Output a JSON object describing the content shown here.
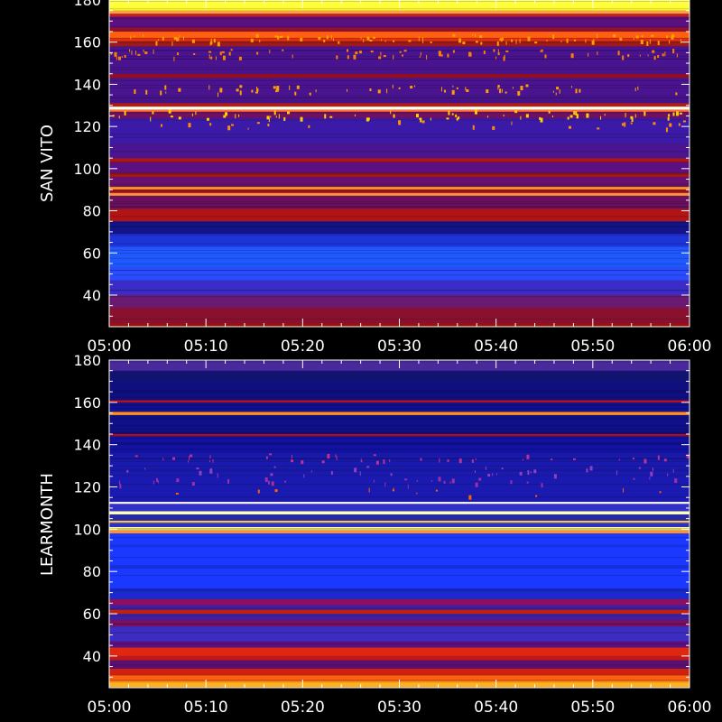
{
  "chart_data": [
    {
      "type": "heatmap",
      "ylabel": "SAN VITO",
      "x_ticks": [
        "05:00",
        "05:10",
        "05:20",
        "05:30",
        "05:40",
        "05:50",
        "06:00"
      ],
      "y_ticks": [
        40,
        60,
        80,
        100,
        120,
        140,
        160,
        180
      ],
      "xlim": [
        "05:00",
        "06:00"
      ],
      "ylim": [
        25,
        180
      ],
      "colormap": [
        "#000030",
        "#1010c0",
        "#3060ff",
        "#600060",
        "#c01010",
        "#ff5000",
        "#ffd000",
        "#ffff90"
      ],
      "bands": [
        {
          "y": [
            25,
            27
          ],
          "color": "#9a1010"
        },
        {
          "y": [
            27,
            34
          ],
          "color": "#8a1030"
        },
        {
          "y": [
            34,
            40
          ],
          "color": "#6a1a70"
        },
        {
          "y": [
            40,
            47
          ],
          "color": "#3b2cc8"
        },
        {
          "y": [
            47,
            53
          ],
          "color": "#2a4cff"
        },
        {
          "y": [
            53,
            63
          ],
          "color": "#2058ff"
        },
        {
          "y": [
            63,
            69
          ],
          "color": "#1e34d8"
        },
        {
          "y": [
            69,
            75
          ],
          "color": "#13148a"
        },
        {
          "y": [
            75,
            81
          ],
          "color": "#b01414"
        },
        {
          "y": [
            81,
            87
          ],
          "color": "#6b1060"
        },
        {
          "y": [
            87,
            88.5
          ],
          "color": "#ff9040"
        },
        {
          "y": [
            88.5,
            90
          ],
          "color": "#a01010"
        },
        {
          "y": [
            90,
            91.5
          ],
          "color": "#ff9030"
        },
        {
          "y": [
            91.5,
            96
          ],
          "color": "#6a1070"
        },
        {
          "y": [
            96,
            98
          ],
          "color": "#a01818"
        },
        {
          "y": [
            98,
            103
          ],
          "color": "#5a1080"
        },
        {
          "y": [
            103,
            105
          ],
          "color": "#b01515"
        },
        {
          "y": [
            105,
            112
          ],
          "color": "#4a1690"
        },
        {
          "y": [
            112,
            124
          ],
          "color": "#3c1aa8"
        },
        {
          "y": [
            124,
            127
          ],
          "color": "#701060"
        },
        {
          "y": [
            127,
            128
          ],
          "color": "#ff7030"
        },
        {
          "y": [
            128,
            129.5
          ],
          "color": "#fffff0"
        },
        {
          "y": [
            129.5,
            131
          ],
          "color": "#c02010"
        },
        {
          "y": [
            131,
            143
          ],
          "color": "#4a1490"
        },
        {
          "y": [
            143,
            145
          ],
          "color": "#901020"
        },
        {
          "y": [
            145,
            158
          ],
          "color": "#4a1490"
        },
        {
          "y": [
            158,
            160
          ],
          "color": "#a01818"
        },
        {
          "y": [
            160,
            162
          ],
          "color": "#e03010"
        },
        {
          "y": [
            162,
            165
          ],
          "color": "#ff6010"
        },
        {
          "y": [
            165,
            167
          ],
          "color": "#901030"
        },
        {
          "y": [
            167,
            172
          ],
          "color": "#5a1080"
        },
        {
          "y": [
            172,
            173.5
          ],
          "color": "#c02020"
        },
        {
          "y": [
            173.5,
            175
          ],
          "color": "#ffa040"
        },
        {
          "y": [
            175,
            177
          ],
          "color": "#ffff30"
        },
        {
          "y": [
            177,
            180
          ],
          "color": "#ffff40"
        }
      ],
      "speckle_rows": [
        {
          "y": 138,
          "color": "#ffa000",
          "count": 60
        },
        {
          "y": 126,
          "color": "#ffd000",
          "count": 70
        },
        {
          "y": 121,
          "color": "#ff9000",
          "count": 25
        },
        {
          "y": 155,
          "color": "#ff8000",
          "count": 80
        },
        {
          "y": 162,
          "color": "#ffa000",
          "count": 90
        }
      ]
    },
    {
      "type": "heatmap",
      "ylabel": "LEARMONTH",
      "x_ticks": [
        "05:00",
        "05:10",
        "05:20",
        "05:30",
        "05:40",
        "05:50",
        "06:00"
      ],
      "y_ticks": [
        40,
        60,
        80,
        100,
        120,
        140,
        160,
        180
      ],
      "xlim": [
        "05:00",
        "06:00"
      ],
      "ylim": [
        25,
        180
      ],
      "colormap": [
        "#000030",
        "#1010c0",
        "#3060ff",
        "#600060",
        "#c01010",
        "#ff5000",
        "#ffd000",
        "#ffff90"
      ],
      "bands": [
        {
          "y": [
            25,
            28
          ],
          "color": "#ffb020"
        },
        {
          "y": [
            28,
            31
          ],
          "color": "#ff6010"
        },
        {
          "y": [
            31,
            34
          ],
          "color": "#d02010"
        },
        {
          "y": [
            34,
            38
          ],
          "color": "#5a1070"
        },
        {
          "y": [
            38,
            40
          ],
          "color": "#c01818"
        },
        {
          "y": [
            40,
            44
          ],
          "color": "#e02810"
        },
        {
          "y": [
            44,
            47
          ],
          "color": "#5a1080"
        },
        {
          "y": [
            47,
            54
          ],
          "color": "#3d2cc0"
        },
        {
          "y": [
            54,
            57
          ],
          "color": "#7a1060"
        },
        {
          "y": [
            57,
            60
          ],
          "color": "#4020a0"
        },
        {
          "y": [
            60,
            62
          ],
          "color": "#c02010"
        },
        {
          "y": [
            62,
            64
          ],
          "color": "#3a20b0"
        },
        {
          "y": [
            64,
            67
          ],
          "color": "#8a1060"
        },
        {
          "y": [
            67,
            72
          ],
          "color": "#1a2ad0"
        },
        {
          "y": [
            72,
            98
          ],
          "color": "#1a38ff"
        },
        {
          "y": [
            98,
            99.5
          ],
          "color": "#ff9030"
        },
        {
          "y": [
            99.5,
            101
          ],
          "color": "#ffff90"
        },
        {
          "y": [
            101,
            103
          ],
          "color": "#3030c0"
        },
        {
          "y": [
            103,
            104
          ],
          "color": "#ffd060"
        },
        {
          "y": [
            104,
            107
          ],
          "color": "#2a2aa0"
        },
        {
          "y": [
            107,
            108.5
          ],
          "color": "#ffffc0"
        },
        {
          "y": [
            108.5,
            112
          ],
          "color": "#3030c8"
        },
        {
          "y": [
            112,
            113
          ],
          "color": "#ffffff"
        },
        {
          "y": [
            113,
            136
          ],
          "color": "#1a1ab0"
        },
        {
          "y": [
            136,
            144
          ],
          "color": "#1212a0"
        },
        {
          "y": [
            144,
            145
          ],
          "color": "#c01010"
        },
        {
          "y": [
            145,
            154
          ],
          "color": "#10108c"
        },
        {
          "y": [
            154,
            155.5
          ],
          "color": "#ff9020"
        },
        {
          "y": [
            155.5,
            160
          ],
          "color": "#101090"
        },
        {
          "y": [
            160,
            161
          ],
          "color": "#c01010"
        },
        {
          "y": [
            161,
            170
          ],
          "color": "#0f0f80"
        },
        {
          "y": [
            170,
            175
          ],
          "color": "#121270"
        },
        {
          "y": [
            175,
            180
          ],
          "color": "#4a2a9a"
        }
      ],
      "speckle_rows": [
        {
          "y": 134,
          "color": "#c03090",
          "count": 40
        },
        {
          "y": 128,
          "color": "#9040c0",
          "count": 35
        },
        {
          "y": 118,
          "color": "#ff6000",
          "count": 12
        },
        {
          "y": 123,
          "color": "#a030a0",
          "count": 30
        }
      ]
    }
  ]
}
